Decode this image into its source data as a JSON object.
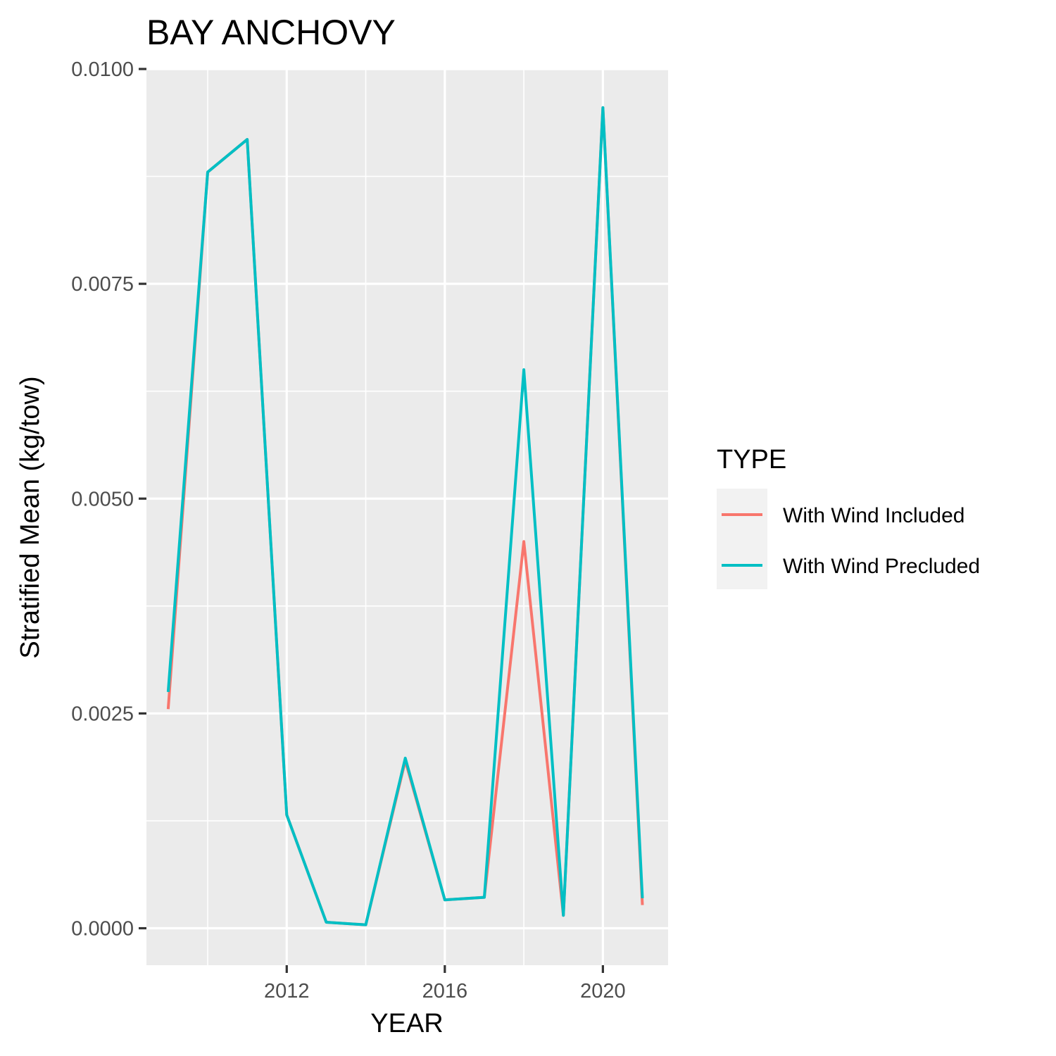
{
  "chart_data": {
    "type": "line",
    "title": "BAY ANCHOVY",
    "xlabel": "YEAR",
    "ylabel": "Stratified Mean (kg/tow)",
    "x": [
      2009,
      2010,
      2011,
      2012,
      2013,
      2014,
      2015,
      2016,
      2017,
      2018,
      2019,
      2020,
      2021
    ],
    "xlim": [
      2008.45,
      2021.65
    ],
    "ylim": [
      -0.00043,
      0.01
    ],
    "x_ticks": [
      2012,
      2016,
      2020
    ],
    "x_tick_labels": [
      "2012",
      "2016",
      "2020"
    ],
    "y_ticks": [
      0.0,
      0.0025,
      0.005,
      0.0075,
      0.01
    ],
    "y_tick_labels": [
      "0.0000",
      "0.0025",
      "0.0050",
      "0.0075",
      "0.0100"
    ],
    "grid": true,
    "legend_position": "right",
    "legend_title": "TYPE",
    "series": [
      {
        "name": "With Wind Included",
        "color": "#F8766D",
        "values": [
          0.00255,
          0.0088,
          0.00918,
          0.00132,
          7e-05,
          4e-05,
          0.00195,
          0.00033,
          0.00036,
          0.0045,
          0.00015,
          0.00955,
          0.00027
        ]
      },
      {
        "name": "With Wind Precluded",
        "color": "#00BFC4",
        "values": [
          0.00275,
          0.0088,
          0.00918,
          0.00132,
          7e-05,
          4e-05,
          0.00198,
          0.00033,
          0.00036,
          0.0065,
          0.00015,
          0.00955,
          0.00035
        ]
      }
    ]
  }
}
